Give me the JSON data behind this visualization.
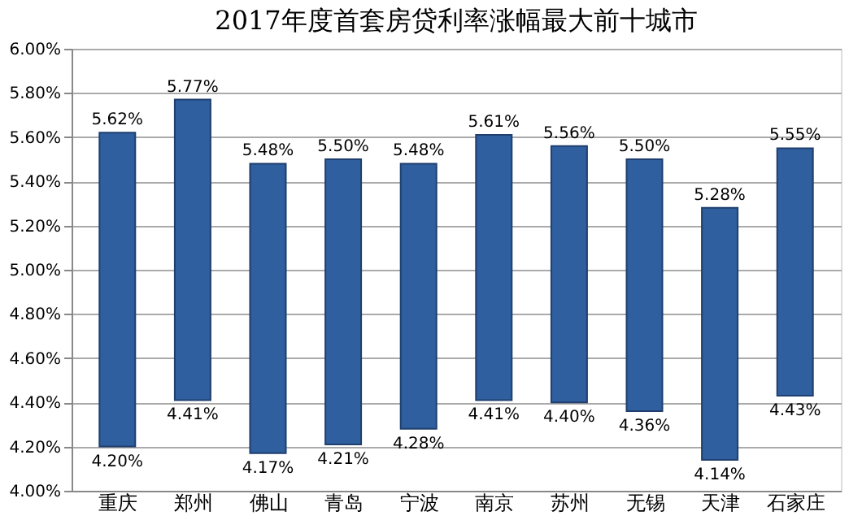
{
  "chart_data": {
    "type": "bar",
    "title": "2017年度首套房贷利率涨幅最大前十城市",
    "categories": [
      "重庆",
      "郑州",
      "佛山",
      "青岛",
      "宁波",
      "南京",
      "苏州",
      "无锡",
      "天津",
      "石家庄"
    ],
    "base": [
      4.2,
      4.41,
      4.17,
      4.21,
      4.28,
      4.41,
      4.4,
      4.36,
      4.14,
      4.43
    ],
    "values": [
      1.42,
      1.36,
      1.31,
      1.29,
      1.2,
      1.2,
      1.16,
      1.14,
      1.14,
      1.12
    ],
    "color": "#2f5f9e",
    "ylim": [
      4.0,
      6.0
    ],
    "yticks": [
      {
        "value": 4.0,
        "label": "4.00%"
      },
      {
        "value": 4.2,
        "label": "4.20%"
      },
      {
        "value": 4.4,
        "label": "4.40%"
      },
      {
        "value": 4.6,
        "label": "4.60%"
      },
      {
        "value": 4.8,
        "label": "4.80%"
      },
      {
        "value": 5.0,
        "label": "5.00%"
      },
      {
        "value": 5.2,
        "label": "5.20%"
      },
      {
        "value": 5.4,
        "label": "5.40%"
      },
      {
        "value": 5.6,
        "label": "5.60%"
      },
      {
        "value": 5.8,
        "label": "5.80%"
      },
      {
        "value": 6.0,
        "label": "6.00%"
      }
    ],
    "grid": "y",
    "annotations": [
      {
        "text": "5.62%",
        "x": "重庆",
        "y": 5.62
      },
      {
        "text": "5.77%",
        "x": "郑州",
        "y": 5.77
      },
      {
        "text": "5.48%",
        "x": "佛山",
        "y": 5.48
      },
      {
        "text": "5.50%",
        "x": "青岛",
        "y": 5.5
      },
      {
        "text": "5.48%",
        "x": "宁波",
        "y": 5.48
      },
      {
        "text": "5.61%",
        "x": "南京",
        "y": 5.61
      },
      {
        "text": "5.56%",
        "x": "苏州",
        "y": 5.56
      },
      {
        "text": "5.50%",
        "x": "无锡",
        "y": 5.5
      },
      {
        "text": "5.28%",
        "x": "天津",
        "y": 5.28
      },
      {
        "text": "5.55%",
        "x": "石家庄",
        "y": 5.55
      },
      {
        "text": "4.20%",
        "x": "重庆",
        "y": 4.2
      },
      {
        "text": "4.41%",
        "x": "郑州",
        "y": 4.41
      },
      {
        "text": "4.17%",
        "x": "佛山",
        "y": 4.17
      },
      {
        "text": "4.21%",
        "x": "青岛",
        "y": 4.21
      },
      {
        "text": "4.28%",
        "x": "宁波",
        "y": 4.28
      },
      {
        "text": "4.41%",
        "x": "南京",
        "y": 4.41
      },
      {
        "text": "4.40%",
        "x": "苏州",
        "y": 4.4
      },
      {
        "text": "4.36%",
        "x": "无锡",
        "y": 4.36
      },
      {
        "text": "4.14%",
        "x": "天津",
        "y": 4.14
      },
      {
        "text": "4.43%",
        "x": "石家庄",
        "y": 4.43
      }
    ]
  }
}
